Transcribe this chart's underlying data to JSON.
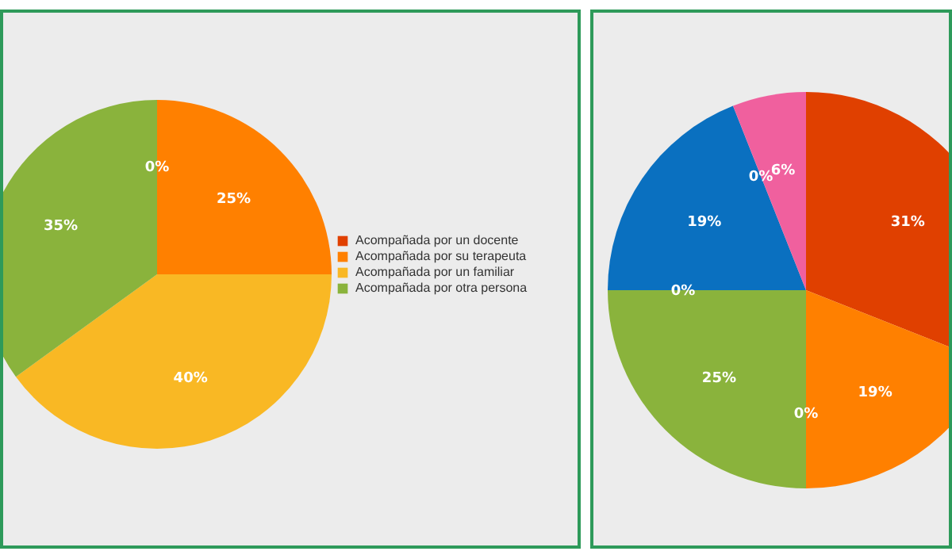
{
  "chart_data": [
    {
      "type": "pie",
      "categories": [
        "Acompañada por un docente",
        "Acompañada por su terapeuta",
        "Acompañada por un familiar",
        "Acompañada por otra persona"
      ],
      "values": [
        0,
        25,
        40,
        35
      ],
      "colors": [
        "#e04000",
        "#ff8000",
        "#f9b824",
        "#8ab33c"
      ],
      "value_labels": [
        "0%",
        "25%",
        "40%",
        "35%"
      ],
      "legend": "right"
    },
    {
      "type": "pie",
      "categories": [
        null,
        null,
        null,
        null,
        null,
        null,
        null,
        null
      ],
      "values": [
        31,
        19,
        0,
        25,
        0,
        19,
        0,
        6
      ],
      "colors": [
        "#e04000",
        "#ff8000",
        "#f9b824",
        "#8ab33c",
        "#a0a0a0",
        "#0a70c0",
        "#7030a0",
        "#f0609e"
      ],
      "value_labels": [
        "31%",
        "19%",
        "0%",
        "25%",
        "0%",
        "19%",
        "0%",
        "6%"
      ]
    }
  ]
}
